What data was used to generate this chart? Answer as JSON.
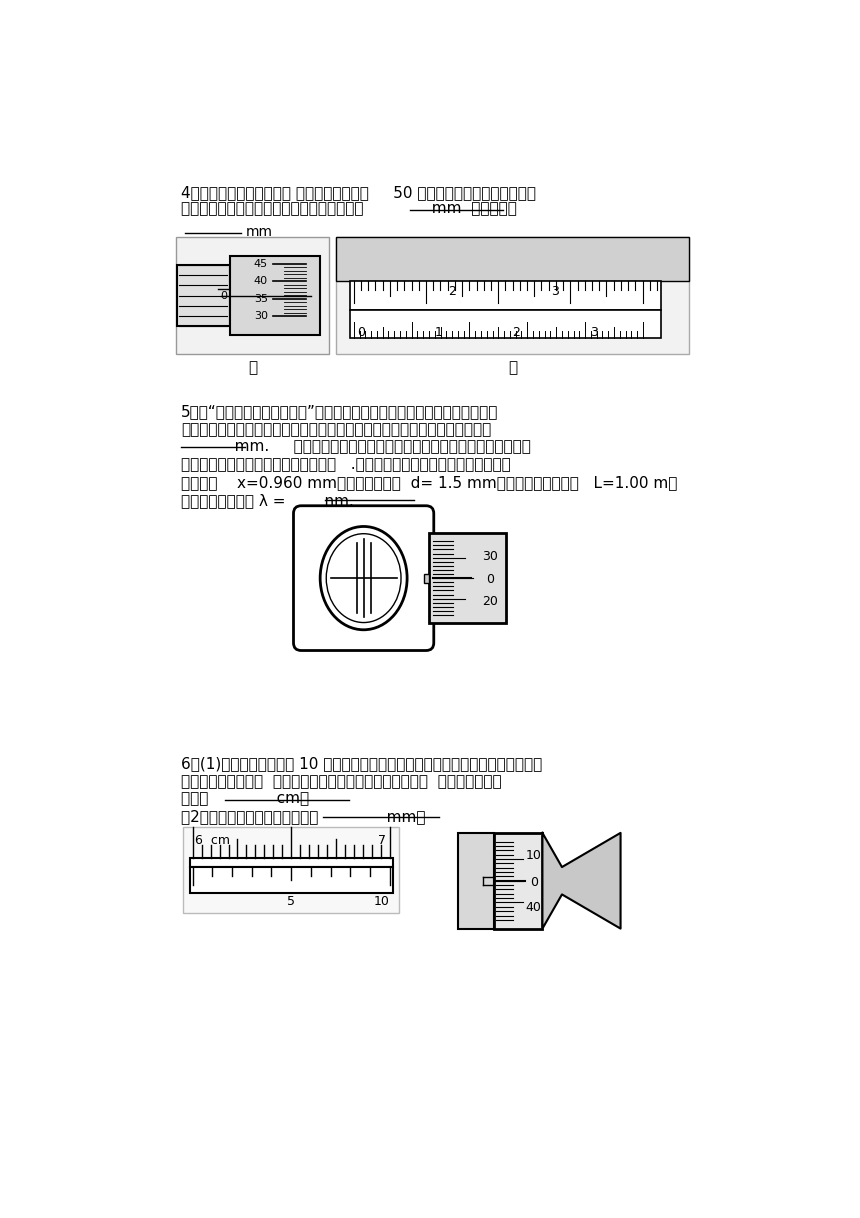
{
  "bg_color": "#ffffff",
  "page_width": 8.6,
  "page_height": 12.18,
  "s4_line1": "4、图甲为用螺旋测微器、 图乙为用游标尺上     50 个等分刻度的游标卡尺测量工",
  "s4_line2": "有件的情况，请读出它们的读数．甲：读数为              mm  乙：读数为",
  "s5_line1": "5、在“用双缝干涉测光的波长”的实验中：测量头装置如下图所示，调节分划",
  "s5_line2": "板的位置，使分划板中心刻线对齐某亮条纹的中心，此时螺旋测微器的读数是",
  "s5_line3": "           mm.     转动手轮，使分划板中心刻线向一侧移动到另一条亮条纹的",
  "s5_line4": "中心位置，由螺旋测微器再读出一读数   .若实验测得第一条到第三条亮条纹中心",
  "s5_line5": "间的距离    x=0.960 mm，已知双缝间距  d= 1.5 mm，双缝到屏的距离为   L=1.00 m，",
  "s5_line6": "则对应的光波波长 λ =        nm.",
  "s6_line1": "6、(1)某同学使用游标为 10 个小等分刻度的游标卡尺测量一物体的尺寸，得到图中",
  "s6_line2": "的游标卡尺的读数，  由于遗挡，只能看到游标的后半部分，  图中游标卡尺的",
  "s6_line3": "读数为              cm；",
  "s6_line4": "（2）从图中读出金属丝的直径为              mm。"
}
